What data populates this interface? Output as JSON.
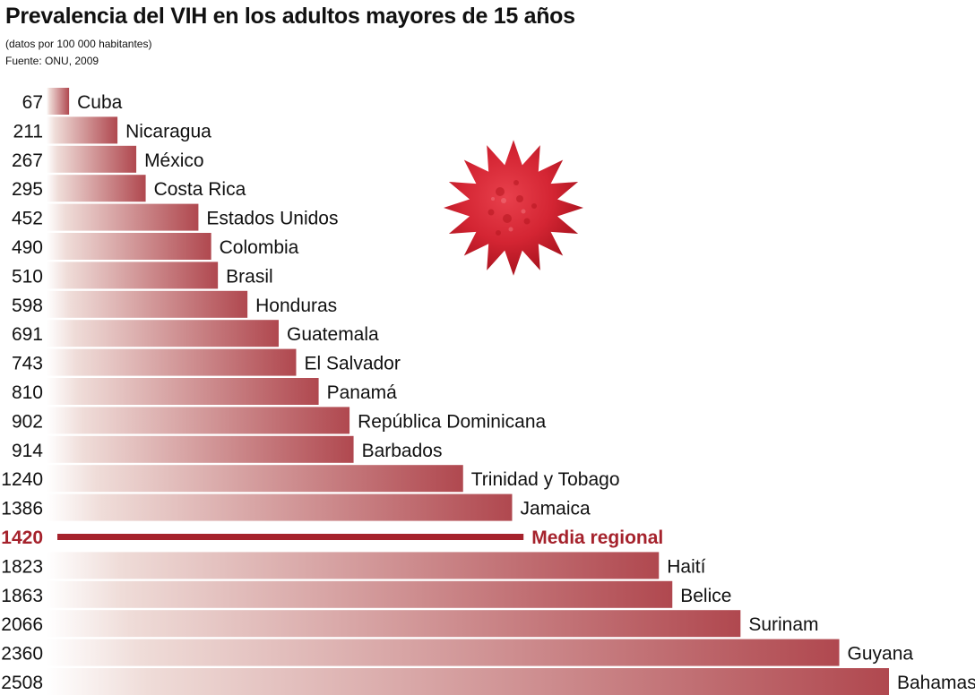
{
  "header": {
    "title": "Prevalencia del VIH en los adultos mayores de 15 años",
    "subtitle": "(datos por 100 000 habitantes)",
    "source": "Fuente: ONU, 2009"
  },
  "chart_data": {
    "type": "bar",
    "orientation": "horizontal",
    "title": "Prevalencia del VIH en los adultos mayores de 15 años",
    "subtitle": "(datos por 100 000 habitantes)",
    "source": "Fuente: ONU, 2009",
    "categories": [
      "Cuba",
      "Nicaragua",
      "México",
      "Costa Rica",
      "Estados Unidos",
      "Colombia",
      "Brasil",
      "Honduras",
      "Guatemala",
      "El Salvador",
      "Panamá",
      "República Dominicana",
      "Barbados",
      "Trinidad y Tobago",
      "Jamaica",
      "Media regional",
      "Haití",
      "Belice",
      "Surinam",
      "Guyana",
      "Bahamas"
    ],
    "values": [
      67,
      211,
      267,
      295,
      452,
      490,
      510,
      598,
      691,
      743,
      810,
      902,
      914,
      1240,
      1386,
      1420,
      1823,
      1863,
      2066,
      2360,
      2508
    ],
    "value_labels": [
      "67",
      "211",
      "267",
      "295",
      "452",
      "490",
      "510",
      "598",
      "691",
      "743",
      "810",
      "902",
      "914",
      "1240",
      "1386",
      "1420",
      "1823",
      "1863",
      "2066",
      "2360",
      "2508"
    ],
    "reference_category": "Media regional",
    "xlim": [
      0,
      2508
    ],
    "grid": false,
    "legend": "none"
  },
  "colors": {
    "bar_start": "#ffffff",
    "bar_end": "#b0484f",
    "average": "#a5222c",
    "text": "#111111"
  },
  "decoration": {
    "icon": "virus-icon"
  }
}
